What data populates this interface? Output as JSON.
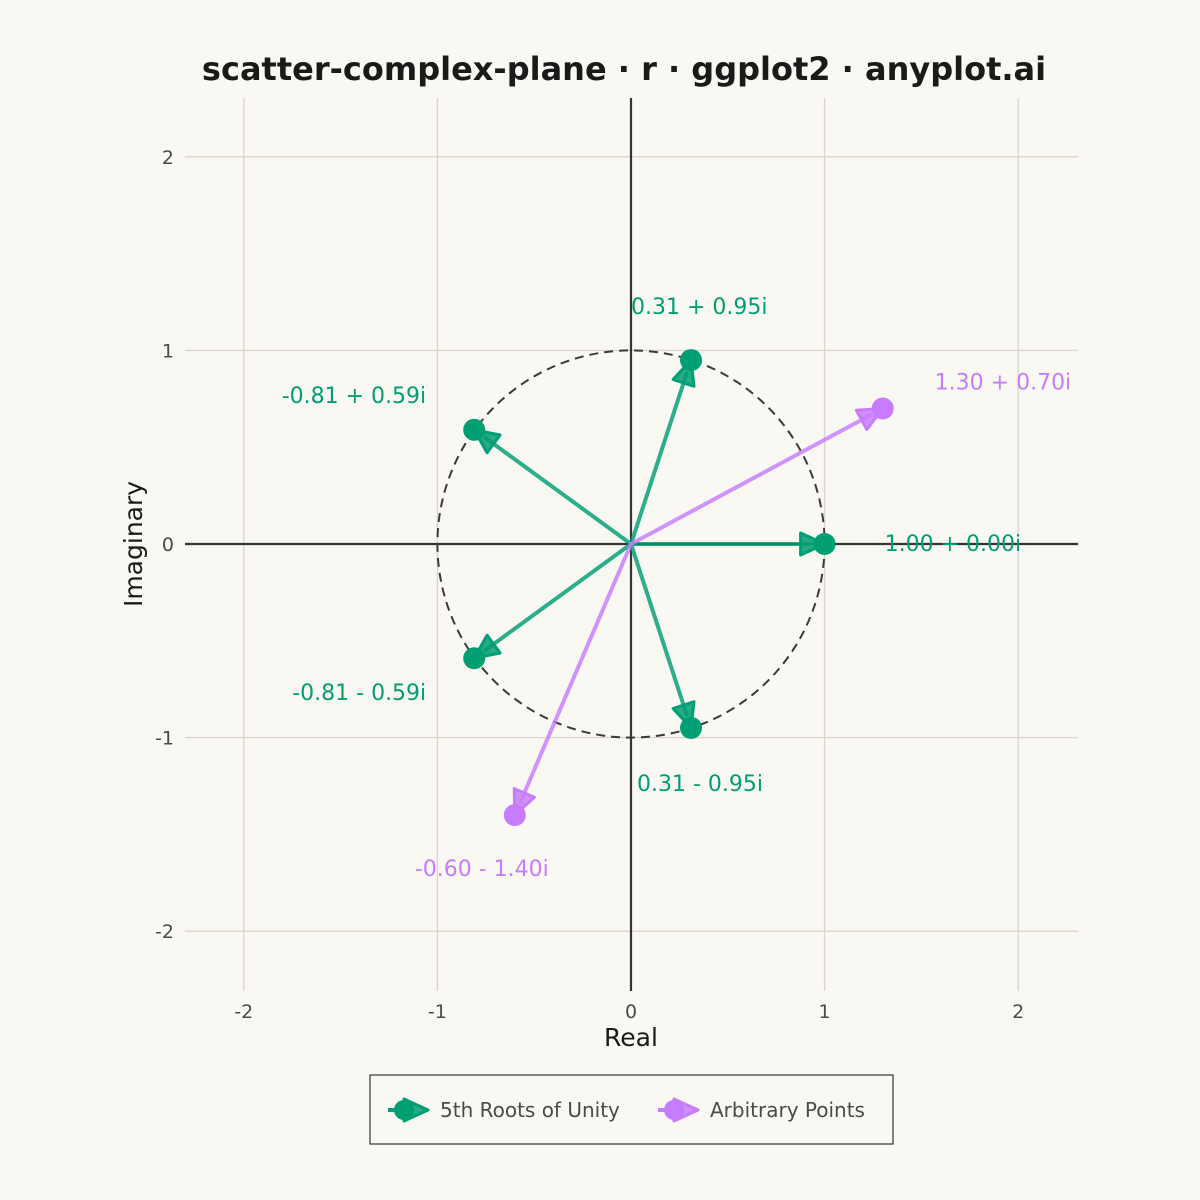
{
  "chart_data": {
    "type": "scatter",
    "title": "scatter-complex-plane · r · ggplot2 · anyplot.ai",
    "xlabel": "Real",
    "ylabel": "Imaginary",
    "xlim": [
      -2.3,
      2.3
    ],
    "ylim": [
      -2.3,
      2.3
    ],
    "xticks": [
      -2,
      -1,
      0,
      1,
      2
    ],
    "yticks": [
      -2,
      -1,
      0,
      1,
      2
    ],
    "xtick_labels": [
      "-2",
      "-1",
      "0",
      "1",
      "2"
    ],
    "ytick_labels": [
      "-2",
      "-1",
      "0",
      "1",
      "2"
    ],
    "grid": true,
    "unit_circle": {
      "radius": 1,
      "style": "dashed"
    },
    "legend_position": "bottom",
    "series": [
      {
        "name": "5th Roots of Unity",
        "color": "#009E73",
        "points": [
          {
            "x": 1.0,
            "y": 0.0,
            "label": "1.00 + 0.00i"
          },
          {
            "x": 0.31,
            "y": 0.95,
            "label": "0.31 + 0.95i"
          },
          {
            "x": -0.81,
            "y": 0.59,
            "label": "-0.81 + 0.59i"
          },
          {
            "x": -0.81,
            "y": -0.59,
            "label": "-0.81 - 0.59i"
          },
          {
            "x": 0.31,
            "y": -0.95,
            "label": "0.31 - 0.95i"
          }
        ]
      },
      {
        "name": "Arbitrary Points",
        "color": "#C77CFF",
        "points": [
          {
            "x": 1.3,
            "y": 0.7,
            "label": "1.30 + 0.70i"
          },
          {
            "x": -0.6,
            "y": -1.4,
            "label": "-0.60 - 1.40i"
          }
        ]
      }
    ]
  }
}
